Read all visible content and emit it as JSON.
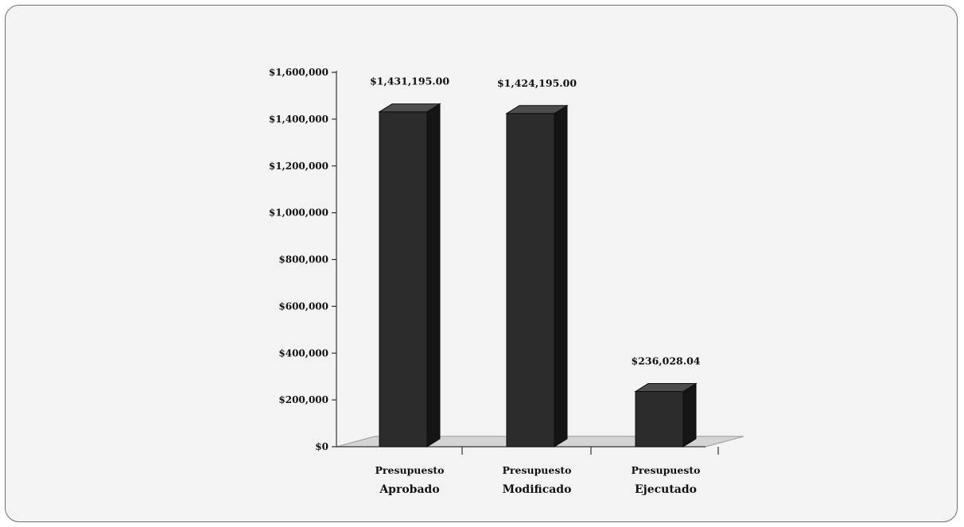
{
  "chart_data": {
    "type": "bar",
    "categories": [
      [
        "Presupuesto",
        "Aprobado"
      ],
      [
        "Presupuesto",
        "Modificado"
      ],
      [
        "Presupuesto",
        "Ejecutado"
      ]
    ],
    "values": [
      1431195.0,
      1424195.0,
      236028.04
    ],
    "data_labels": [
      "$1,431,195.00",
      "$1,424,195.00",
      "$236,028.04"
    ],
    "title": "",
    "xlabel": "",
    "ylabel": "",
    "ylim": [
      0,
      1600000
    ],
    "yticks": [
      0,
      200000,
      400000,
      600000,
      800000,
      1000000,
      1200000,
      1400000,
      1600000
    ],
    "ytick_labels": [
      "$0",
      "$200,000",
      "$400,000",
      "$600,000",
      "$800,000",
      "$1,000,000",
      "$1,200,000",
      "$1,400,000",
      "$1,600,000"
    ],
    "grid": false,
    "legend": "none",
    "style": "3d-column",
    "colors": {
      "bar_front": "#2c2c2c",
      "bar_side": "#151515",
      "bar_top": "#4d4d4d",
      "floor": "#d4d4d4",
      "background": "#f3f3f3",
      "axis": "#333333"
    }
  }
}
